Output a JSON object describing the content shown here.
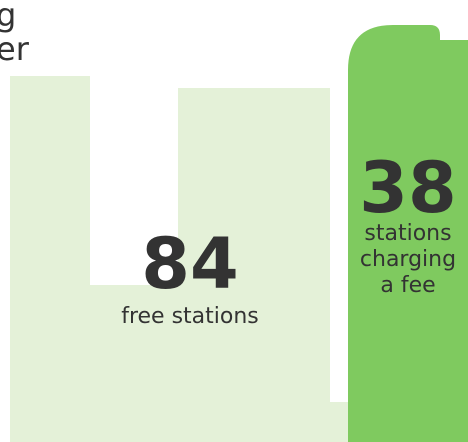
{
  "heading_fragments": [
    "g",
    "er"
  ],
  "stats": [
    {
      "value": 84,
      "label": [
        "free stations"
      ]
    },
    {
      "value": 38,
      "label": [
        "stations",
        "charging",
        "a fee"
      ]
    }
  ]
}
